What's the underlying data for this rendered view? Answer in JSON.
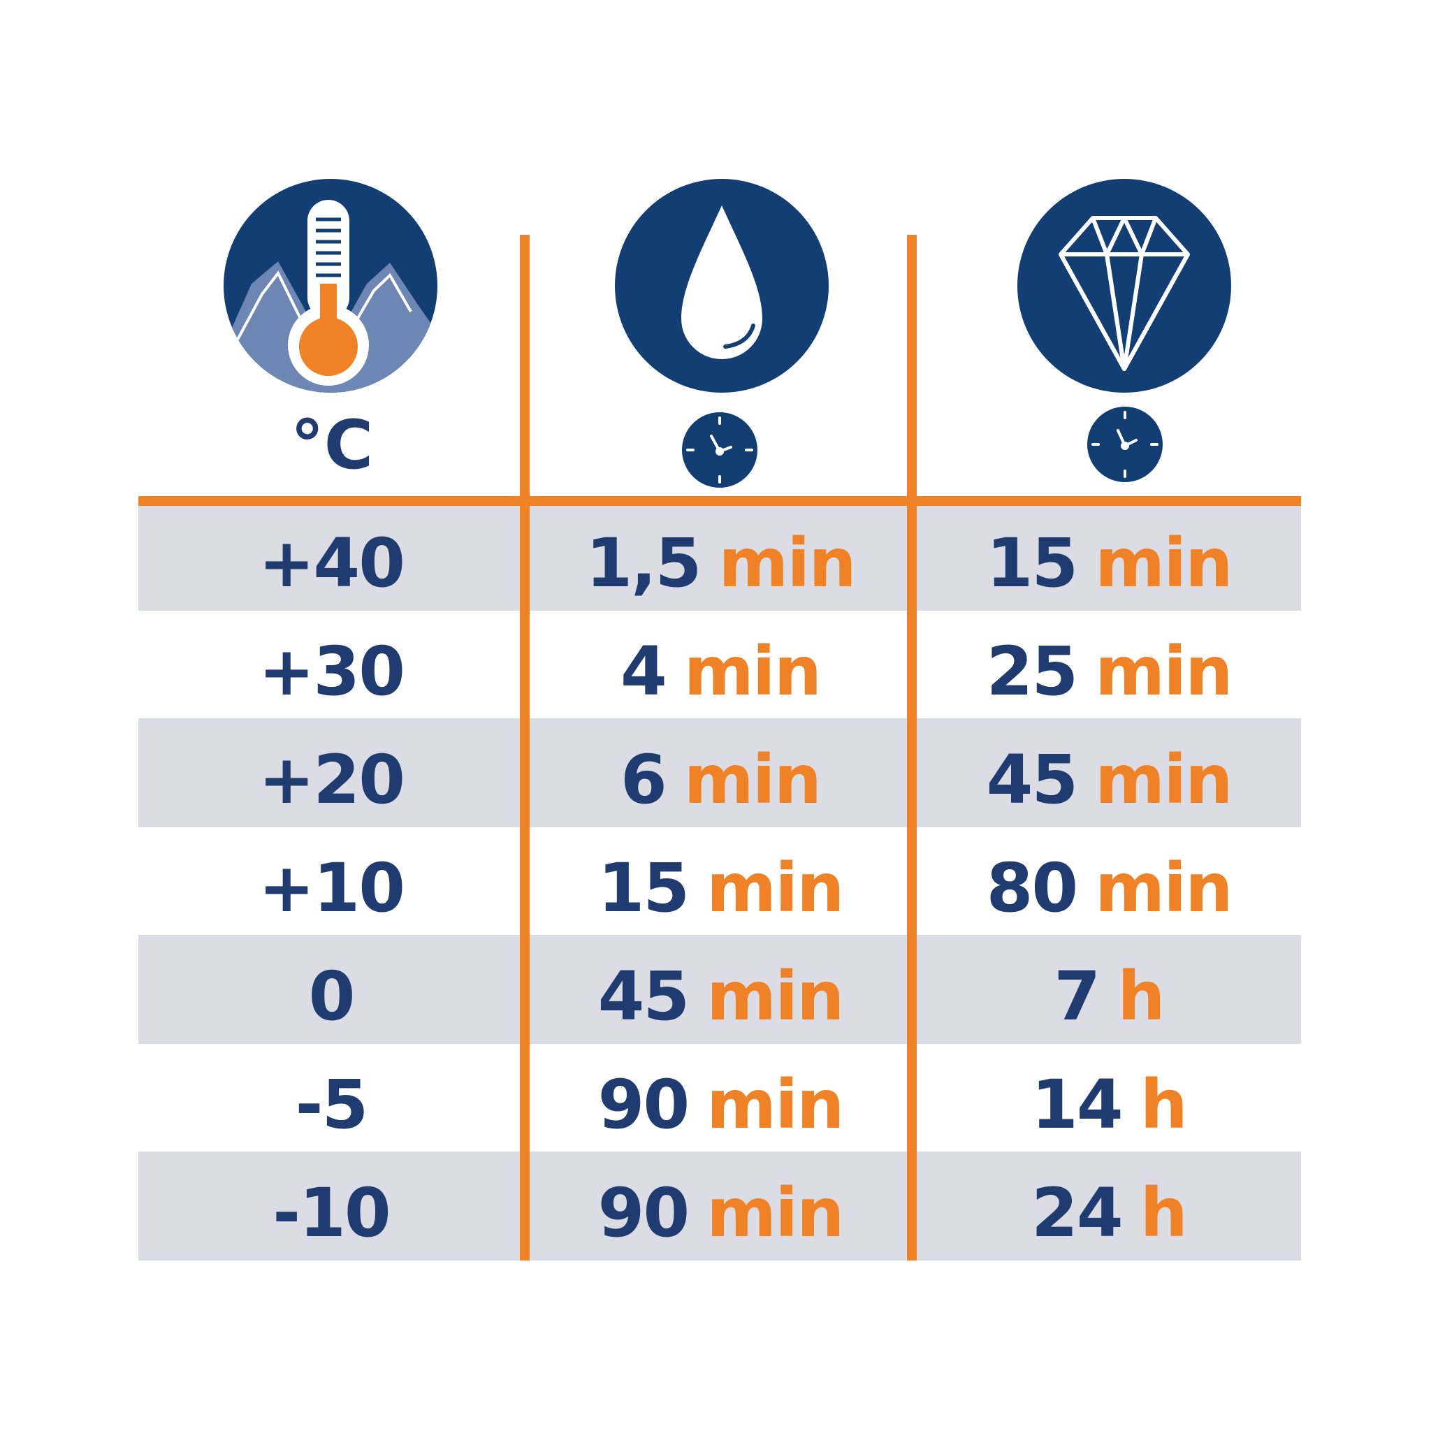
{
  "header": {
    "temperature_unit": "°C",
    "temperature_icon": "thermometer-mountain-icon",
    "touch_dry_icon": "water-drop-icon",
    "full_cure_icon": "diamond-icon",
    "time_icon": "clock-icon"
  },
  "rows": [
    {
      "temp": "+40",
      "touch_value": "1,5",
      "touch_unit": "min",
      "cure_value": "15",
      "cure_unit": "min"
    },
    {
      "temp": "+30",
      "touch_value": "4",
      "touch_unit": "min",
      "cure_value": "25",
      "cure_unit": "min"
    },
    {
      "temp": "+20",
      "touch_value": "6",
      "touch_unit": "min",
      "cure_value": "45",
      "cure_unit": "min"
    },
    {
      "temp": "+10",
      "touch_value": "15",
      "touch_unit": "min",
      "cure_value": "80",
      "cure_unit": "min"
    },
    {
      "temp": "0",
      "touch_value": "45",
      "touch_unit": "min",
      "cure_value": "7",
      "cure_unit": "h"
    },
    {
      "temp": "-5",
      "touch_value": "90",
      "touch_unit": "min",
      "cure_value": "14",
      "cure_unit": "h"
    },
    {
      "temp": "-10",
      "touch_value": "90",
      "touch_unit": "min",
      "cure_value": "24",
      "cure_unit": "h"
    }
  ],
  "colors": {
    "navy": "#1f3b6f",
    "icon_navy": "#133e73",
    "orange": "#ef8226",
    "band_gray": "#dcdde4",
    "mountain_blue": "#6e86b3"
  }
}
